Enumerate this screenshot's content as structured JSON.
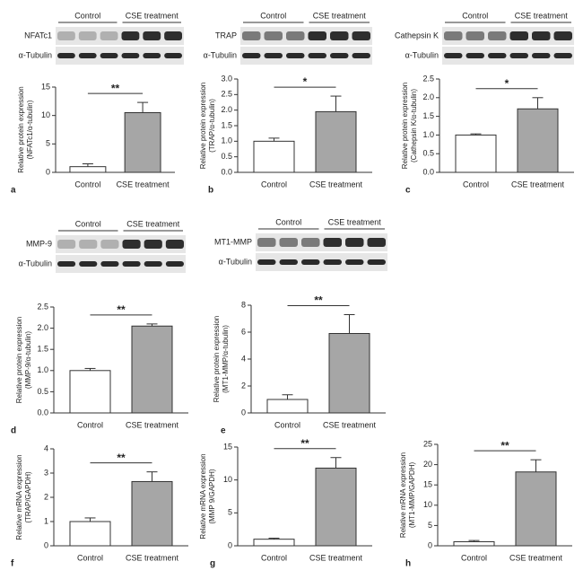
{
  "chart_data": [
    {
      "type": "bar",
      "panel": "a",
      "ylabel": [
        "Relative protein expression",
        "(NFATc1/α-tubulin)"
      ],
      "categories": [
        "Control",
        "CSE treatment"
      ],
      "values": [
        1.0,
        10.5
      ],
      "errors": [
        0.5,
        1.8
      ],
      "colors": [
        "#ffffff",
        "#a6a6a6"
      ],
      "significance": "**",
      "ylim": [
        0,
        15
      ],
      "yticks": [
        0,
        5,
        10,
        15
      ],
      "blot": {
        "groups": [
          "Control",
          "CSE treatment"
        ],
        "rows": [
          "NFATc1",
          "α-Tubulin"
        ]
      }
    },
    {
      "type": "bar",
      "panel": "b",
      "ylabel": [
        "Relative protein expression",
        "(TRAP/α-tubulin)"
      ],
      "categories": [
        "Control",
        "CSE treatment"
      ],
      "values": [
        1.0,
        1.95
      ],
      "errors": [
        0.1,
        0.5
      ],
      "colors": [
        "#ffffff",
        "#a6a6a6"
      ],
      "significance": "*",
      "ylim": [
        0,
        3.0
      ],
      "yticks": [
        {
          "value": 0,
          "label": "0.0"
        },
        0.5,
        {
          "value": 1,
          "label": "1.0"
        },
        1.5,
        {
          "value": 2,
          "label": "2.0"
        },
        2.5,
        {
          "value": 3,
          "label": "3.0"
        }
      ],
      "blot": {
        "groups": [
          "Control",
          "CSE treatment"
        ],
        "rows": [
          "TRAP",
          "α-Tubulin"
        ]
      }
    },
    {
      "type": "bar",
      "panel": "c",
      "ylabel": [
        "Relative protein expression",
        "(Cathepsin K/α-tubulin)"
      ],
      "categories": [
        "Control",
        "CSE treatment"
      ],
      "values": [
        1.0,
        1.7
      ],
      "errors": [
        0.03,
        0.3
      ],
      "colors": [
        "#ffffff",
        "#a6a6a6"
      ],
      "significance": "*",
      "ylim": [
        0,
        2.5
      ],
      "yticks": [
        {
          "value": 0,
          "label": "0.0"
        },
        0.5,
        {
          "value": 1,
          "label": "1.0"
        },
        1.5,
        {
          "value": 2,
          "label": "2.0"
        },
        2.5
      ],
      "blot": {
        "groups": [
          "Control",
          "CSE treatment"
        ],
        "rows": [
          "Cathepsin K",
          "α-Tubulin"
        ]
      }
    },
    {
      "type": "bar",
      "panel": "d",
      "ylabel": [
        "Relative protein expression",
        "(MMP-9/α-tubulin)"
      ],
      "categories": [
        "Control",
        "CSE treatment"
      ],
      "values": [
        1.0,
        2.05
      ],
      "errors": [
        0.05,
        0.05
      ],
      "colors": [
        "#ffffff",
        "#a6a6a6"
      ],
      "significance": "**",
      "ylim": [
        0,
        2.5
      ],
      "yticks": [
        {
          "value": 0,
          "label": "0.0"
        },
        0.5,
        {
          "value": 1,
          "label": "1.0"
        },
        1.5,
        {
          "value": 2,
          "label": "2.0"
        },
        2.5
      ],
      "blot": {
        "groups": [
          "Control",
          "CSE treatment"
        ],
        "rows": [
          "MMP-9",
          "α-Tubulin"
        ]
      }
    },
    {
      "type": "bar",
      "panel": "e",
      "ylabel": [
        "Relative protein expression",
        "(MT1-MMP/α-tubulin)"
      ],
      "categories": [
        "Control",
        "CSE treatment"
      ],
      "values": [
        1.0,
        5.9
      ],
      "errors": [
        0.35,
        1.4
      ],
      "colors": [
        "#ffffff",
        "#a6a6a6"
      ],
      "significance": "**",
      "ylim": [
        0,
        8
      ],
      "yticks": [
        0,
        2,
        4,
        6,
        8
      ],
      "blot": {
        "groups": [
          "Control",
          "CSE treatment"
        ],
        "rows": [
          "MT1-MMP",
          "α-Tubulin"
        ]
      }
    },
    {
      "type": "bar",
      "panel": "f",
      "ylabel": [
        "Relative mRNA expression",
        "(TRAP/GAPDH)"
      ],
      "categories": [
        "Control",
        "CSE treatment"
      ],
      "values": [
        1.0,
        2.65
      ],
      "errors": [
        0.15,
        0.4
      ],
      "colors": [
        "#ffffff",
        "#a6a6a6"
      ],
      "significance": "**",
      "ylim": [
        0,
        4
      ],
      "yticks": [
        0,
        1,
        2,
        3,
        4
      ]
    },
    {
      "type": "bar",
      "panel": "g",
      "ylabel": [
        "Relative mRNA expression",
        "(MMP 9/GAPDH)"
      ],
      "categories": [
        "Control",
        "CSE treatment"
      ],
      "values": [
        1.0,
        11.8
      ],
      "errors": [
        0.15,
        1.6
      ],
      "colors": [
        "#ffffff",
        "#a6a6a6"
      ],
      "significance": "**",
      "ylim": [
        0,
        15
      ],
      "yticks": [
        0,
        5,
        10,
        15
      ]
    },
    {
      "type": "bar",
      "panel": "h",
      "ylabel": [
        "Relative mRNA expression",
        "(MT1-MMP/GAPDH)"
      ],
      "categories": [
        "Control",
        "CSE treatment"
      ],
      "values": [
        1.0,
        18.2
      ],
      "errors": [
        0.3,
        3.0
      ],
      "colors": [
        "#ffffff",
        "#a6a6a6"
      ],
      "significance": "**",
      "ylim": [
        0,
        25
      ],
      "yticks": [
        0,
        5,
        10,
        15,
        20,
        25
      ]
    }
  ]
}
